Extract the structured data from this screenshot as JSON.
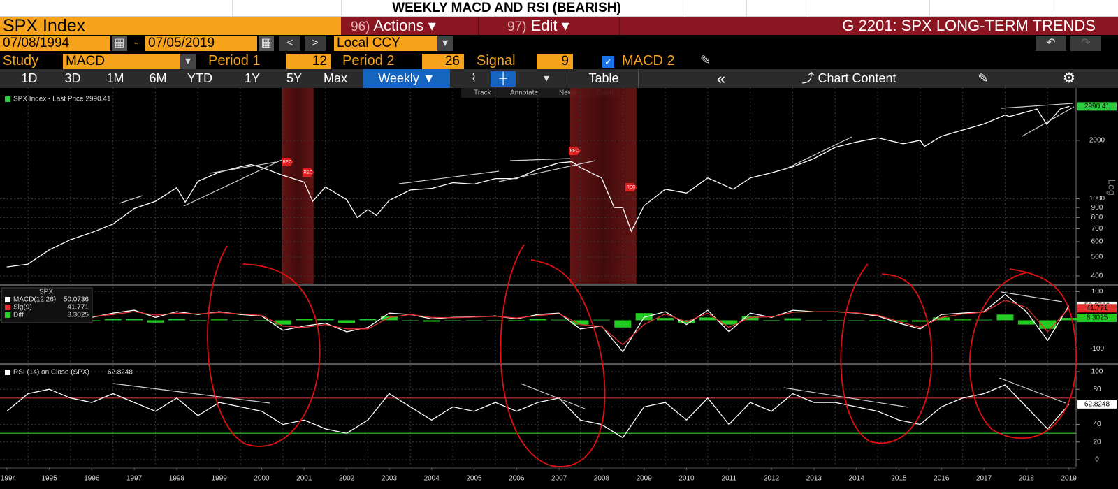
{
  "header": {
    "title": "WEEKLY MACD AND RSI (BEARISH)"
  },
  "toolbar": {
    "security": "SPX Index",
    "actions_num": "96)",
    "actions": "Actions ▾",
    "edit_num": "97)",
    "edit": "Edit ▾",
    "page": "G 2201: SPX LONG-TERM TRENDS"
  },
  "dates": {
    "start": "07/08/1994",
    "sep": "-",
    "end": "07/05/2019",
    "currency": "Local CCY"
  },
  "study": {
    "label": "Study",
    "name": "MACD",
    "period1_label": "Period 1",
    "period1": 12,
    "period2_label": "Period 2",
    "period2": 26,
    "signal_label": "Signal",
    "signal": 9,
    "macd2": "MACD 2"
  },
  "ranges": [
    "1D",
    "3D",
    "1M",
    "6M",
    "YTD",
    "1Y",
    "5Y",
    "Max"
  ],
  "frequency": "Weekly ▼",
  "table": "Table",
  "chart_content": "Chart Content",
  "chart_tools": [
    "Track",
    "Annotate",
    "News",
    "Zoom"
  ],
  "chart_data": [
    {
      "type": "line",
      "log_scale": true,
      "grid": true,
      "axis_label": "Log",
      "xlim": [
        1994.34,
        2019.67
      ],
      "xgrid": [
        1995,
        1996,
        1997,
        1998,
        1999,
        2000,
        2001,
        2002,
        2003,
        2004,
        2005,
        2006,
        2007,
        2008,
        2009,
        2010,
        2011,
        2012,
        2013,
        2014,
        2015,
        2016,
        2017,
        2018,
        2019
      ],
      "ylim": [
        365,
        3600
      ],
      "yticks": [
        400,
        500,
        600,
        700,
        800,
        900,
        1000,
        2000
      ],
      "x": [
        1994.5,
        1995.0,
        1995.5,
        1996.0,
        1996.5,
        1997.0,
        1997.5,
        1998.0,
        1998.5,
        1998.7,
        1999.0,
        1999.5,
        2000.0,
        2000.25,
        2000.5,
        2001.0,
        2001.5,
        2001.7,
        2002.0,
        2002.5,
        2002.75,
        2003.0,
        2003.2,
        2003.5,
        2004.0,
        2004.5,
        2005.0,
        2005.5,
        2006.0,
        2006.5,
        2007.0,
        2007.5,
        2007.8,
        2008.0,
        2008.5,
        2008.8,
        2009.0,
        2009.2,
        2009.5,
        2010.0,
        2010.5,
        2011.0,
        2011.6,
        2012.0,
        2012.5,
        2013.0,
        2013.5,
        2014.0,
        2014.5,
        2015.0,
        2015.6,
        2016.0,
        2016.1,
        2016.5,
        2017.0,
        2017.5,
        2018.0,
        2018.1,
        2018.75,
        2018.98,
        2019.3,
        2019.51
      ],
      "series": [
        {
          "name": "SPX Index - Last Price 2990.41",
          "color": "#2ecc40",
          "line_color": "#ffffff",
          "values": [
            445,
            460,
            545,
            615,
            670,
            740,
            890,
            970,
            1140,
            960,
            1230,
            1370,
            1460,
            1500,
            1450,
            1320,
            1220,
            970,
            1150,
            990,
            800,
            880,
            820,
            980,
            1110,
            1130,
            1210,
            1190,
            1270,
            1270,
            1420,
            1530,
            1550,
            1450,
            1280,
            900,
            900,
            680,
            920,
            1120,
            1070,
            1280,
            1120,
            1280,
            1360,
            1460,
            1610,
            1840,
            1960,
            2060,
            1920,
            2000,
            1860,
            2100,
            2260,
            2430,
            2700,
            2650,
            2900,
            2420,
            2900,
            2990.41
          ]
        }
      ],
      "recessions": [
        [
          2000.97,
          2001.72
        ],
        [
          2007.76,
          2009.32
        ]
      ],
      "events": [
        {
          "x": 2001.1,
          "value": 1545,
          "label": "REC"
        },
        {
          "x": 2001.59,
          "value": 1364,
          "label": "REC"
        },
        {
          "x": 2007.86,
          "value": 1763,
          "label": "REC"
        },
        {
          "x": 2009.19,
          "value": 1146,
          "label": "REC"
        }
      ]
    },
    {
      "type": "line",
      "grid": true,
      "title": "SPX",
      "legend_values": true,
      "xlim": [
        1994.34,
        2019.67
      ],
      "xgrid": [
        1995,
        1996,
        1997,
        1998,
        1999,
        2000,
        2001,
        2002,
        2003,
        2004,
        2005,
        2006,
        2007,
        2008,
        2009,
        2010,
        2011,
        2012,
        2013,
        2014,
        2015,
        2016,
        2017,
        2018,
        2019
      ],
      "ylim": [
        -145,
        118
      ],
      "yticks": [
        -100,
        100
      ],
      "x": [
        1994.5,
        1995,
        1995.5,
        1996,
        1996.5,
        1997,
        1997.5,
        1998,
        1998.5,
        1999,
        1999.5,
        2000,
        2000.5,
        2001,
        2001.5,
        2002,
        2002.5,
        2003,
        2003.5,
        2004,
        2004.5,
        2005,
        2005.5,
        2006,
        2006.5,
        2007,
        2007.5,
        2008,
        2008.5,
        2009,
        2009.5,
        2010,
        2010.5,
        2011,
        2011.5,
        2012,
        2012.5,
        2013,
        2013.5,
        2014,
        2014.5,
        2015,
        2015.5,
        2016,
        2016.5,
        2017,
        2017.5,
        2018,
        2018.5,
        2019,
        2019.5
      ],
      "series": [
        {
          "name": "Diff",
          "type": "bar",
          "color": "#22cc22",
          "values": [
            2,
            4,
            4,
            0,
            -3,
            5,
            5,
            -8,
            5,
            -2,
            3,
            -2,
            -2,
            -15,
            5,
            5,
            -10,
            5,
            15,
            0,
            -5,
            1,
            1,
            1,
            -3,
            4,
            2,
            -15,
            2,
            -25,
            25,
            8,
            -10,
            10,
            -15,
            15,
            -2,
            7,
            0,
            0,
            -1,
            -3,
            -5,
            -5,
            10,
            3,
            2,
            20,
            -15,
            -30,
            8.3025
          ]
        },
        {
          "name": "MACD(12,26)",
          "color": "#ffffff",
          "values": [
            5,
            12,
            20,
            18,
            10,
            25,
            35,
            10,
            30,
            20,
            30,
            20,
            15,
            -35,
            -20,
            -10,
            -40,
            -25,
            25,
            20,
            5,
            10,
            12,
            15,
            5,
            20,
            25,
            -30,
            -20,
            -110,
            10,
            30,
            -15,
            35,
            -40,
            25,
            10,
            35,
            30,
            30,
            25,
            15,
            -10,
            -30,
            20,
            25,
            30,
            90,
            30,
            -70,
            50.0736
          ]
        },
        {
          "name": "Sig(9)",
          "color": "#e03030",
          "values": [
            3,
            8,
            16,
            18,
            13,
            20,
            30,
            18,
            25,
            22,
            27,
            22,
            17,
            -20,
            -25,
            -15,
            -30,
            -30,
            10,
            20,
            10,
            9,
            11,
            14,
            8,
            16,
            23,
            -15,
            -22,
            -85,
            -15,
            22,
            -5,
            25,
            -25,
            10,
            12,
            28,
            30,
            30,
            26,
            18,
            -5,
            -25,
            10,
            22,
            28,
            70,
            45,
            -40,
            41.771
          ]
        }
      ]
    },
    {
      "type": "line",
      "grid": true,
      "legend_values": true,
      "xlim": [
        1994.34,
        2019.67
      ],
      "xgrid": [
        1995,
        1996,
        1997,
        1998,
        1999,
        2000,
        2001,
        2002,
        2003,
        2004,
        2005,
        2006,
        2007,
        2008,
        2009,
        2010,
        2011,
        2012,
        2013,
        2014,
        2015,
        2016,
        2017,
        2018,
        2019
      ],
      "xticks": [
        {
          "value": 1994.5,
          "label": "1994"
        },
        {
          "value": 1995.5,
          "label": "1995"
        },
        {
          "value": 1996.5,
          "label": "1996"
        },
        {
          "value": 1997.5,
          "label": "1997"
        },
        {
          "value": 1998.5,
          "label": "1998"
        },
        {
          "value": 1999.5,
          "label": "1999"
        },
        {
          "value": 2000.5,
          "label": "2000"
        },
        {
          "value": 2001.5,
          "label": "2001"
        },
        {
          "value": 2002.5,
          "label": "2002"
        },
        {
          "value": 2003.5,
          "label": "2003"
        },
        {
          "value": 2004.5,
          "label": "2004"
        },
        {
          "value": 2005.5,
          "label": "2005"
        },
        {
          "value": 2006.5,
          "label": "2006"
        },
        {
          "value": 2007.5,
          "label": "2007"
        },
        {
          "value": 2008.5,
          "label": "2008"
        },
        {
          "value": 2009.5,
          "label": "2009"
        },
        {
          "value": 2010.5,
          "label": "2010"
        },
        {
          "value": 2011.5,
          "label": "2011"
        },
        {
          "value": 2012.5,
          "label": "2012"
        },
        {
          "value": 2013.5,
          "label": "2013"
        },
        {
          "value": 2014.5,
          "label": "2014"
        },
        {
          "value": 2015.5,
          "label": "2015"
        },
        {
          "value": 2016.5,
          "label": "2016"
        },
        {
          "value": 2017.5,
          "label": "2017"
        },
        {
          "value": 2018.5,
          "label": "2018"
        },
        {
          "value": 2019.5,
          "label": "2019"
        }
      ],
      "ylim": [
        -8,
        108
      ],
      "yticks": [
        0,
        20,
        40,
        60,
        80,
        100
      ],
      "ref_lines": [
        {
          "value": 70,
          "color": "#c0392b"
        },
        {
          "value": 30,
          "color": "#33cc33"
        }
      ],
      "x": [
        1994.5,
        1995,
        1995.5,
        1996,
        1996.5,
        1997,
        1997.5,
        1998,
        1998.5,
        1999,
        1999.5,
        2000,
        2000.5,
        2001,
        2001.5,
        2002,
        2002.5,
        2003,
        2003.5,
        2004,
        2004.5,
        2005,
        2005.5,
        2006,
        2006.5,
        2007,
        2007.5,
        2008,
        2008.5,
        2009,
        2009.5,
        2010,
        2010.5,
        2011,
        2011.5,
        2012,
        2012.5,
        2013,
        2013.5,
        2014,
        2014.5,
        2015,
        2015.5,
        2016,
        2016.5,
        2017,
        2017.5,
        2018,
        2018.5,
        2019,
        2019.5
      ],
      "series": [
        {
          "name": "RSI (14)  on Close (SPX)",
          "color": "#ffffff",
          "values": [
            55,
            75,
            80,
            70,
            65,
            75,
            65,
            55,
            70,
            50,
            65,
            60,
            55,
            40,
            45,
            35,
            30,
            45,
            75,
            60,
            45,
            60,
            55,
            65,
            55,
            65,
            70,
            45,
            40,
            25,
            60,
            65,
            45,
            70,
            40,
            65,
            55,
            75,
            65,
            65,
            60,
            55,
            45,
            40,
            60,
            70,
            75,
            85,
            60,
            35,
            62.8248
          ]
        }
      ]
    }
  ]
}
